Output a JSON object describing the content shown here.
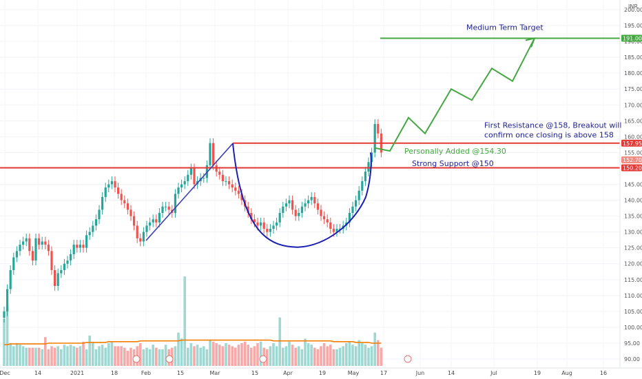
{
  "chart_data": {
    "type": "candlestick",
    "currency": "INR",
    "colors": {
      "up": "#26a69a",
      "down": "#ef5350",
      "target": "#43a83f",
      "resistance": "#e53935",
      "pattern": "#1a1fb0",
      "ma": "#f57c00"
    },
    "y_ticks": [
      "200.00",
      "195.00",
      "190.00",
      "185.00",
      "180.00",
      "175.00",
      "170.00",
      "165.00",
      "160.00",
      "155.00",
      "150.00",
      "145.00",
      "140.00",
      "135.00",
      "130.00",
      "125.00",
      "120.00",
      "115.00",
      "110.00",
      "105.00",
      "100.00",
      "95.00",
      "90.00"
    ],
    "ylim": [
      89,
      201
    ],
    "x_ticks": [
      "Dec",
      "14",
      "2021",
      "18",
      "Feb",
      "15",
      "Mar",
      "15",
      "Apr",
      "19",
      "May",
      "17",
      "Jun",
      "14",
      "Jul",
      "19",
      "Aug",
      "16"
    ],
    "price_tags": [
      {
        "label": "191.00",
        "value": 191.0,
        "color": "#43a83f"
      },
      {
        "label": "157.95",
        "value": 157.95,
        "color": "#e53935"
      },
      {
        "label": "152.70",
        "value": 152.7,
        "color": "#f28b82"
      },
      {
        "label": "150.20",
        "value": 150.2,
        "color": "#e53935"
      }
    ],
    "levels": [
      {
        "name": "Medium Term Target",
        "value": 191.0
      },
      {
        "name": "First Resistance",
        "value": 157.95
      },
      {
        "name": "Strong Support",
        "value": 150.2
      }
    ],
    "annotations": {
      "target": "Medium Term Target",
      "resistance_line1": "First Resistance @158, Breakout will",
      "resistance_line2": "confirm once closing is above 158",
      "added": "Personally Added @154.30",
      "support": "Strong Support @150"
    },
    "close": [
      105,
      112,
      118,
      122,
      124,
      126,
      127,
      128,
      124,
      121,
      128,
      126,
      127,
      126,
      124,
      118,
      113,
      117,
      118,
      120,
      121,
      123,
      126,
      125,
      126,
      125,
      129,
      130,
      132,
      134,
      137,
      141,
      144,
      145,
      146,
      144,
      142,
      140,
      139,
      137,
      135,
      132,
      128,
      127,
      130,
      132,
      133,
      134,
      133,
      136,
      138,
      138,
      137,
      136,
      142,
      144,
      145,
      146,
      148,
      150,
      145,
      146,
      147,
      147,
      151,
      158,
      151,
      149,
      148,
      146,
      146,
      145,
      144,
      143,
      142,
      140,
      138,
      136,
      134,
      133,
      132,
      133,
      131,
      130,
      131,
      132,
      133,
      136,
      138,
      139,
      140,
      137,
      135,
      136,
      138,
      139,
      140,
      141,
      139,
      137,
      135,
      134,
      133,
      131,
      130,
      131,
      131,
      132,
      133,
      136,
      138,
      140,
      143,
      146,
      149,
      152,
      155,
      164,
      161,
      155
    ],
    "volume": [
      62,
      80,
      30,
      26,
      30,
      28,
      26,
      24,
      24,
      24,
      24,
      24,
      22,
      38,
      22,
      26,
      24,
      26,
      22,
      28,
      26,
      28,
      26,
      24,
      26,
      32,
      22,
      40,
      32,
      22,
      26,
      28,
      24,
      30,
      32,
      26,
      26,
      26,
      24,
      20,
      24,
      22,
      26,
      30,
      22,
      24,
      22,
      28,
      24,
      22,
      22,
      28,
      22,
      24,
      26,
      44,
      36,
      118,
      24,
      30,
      26,
      28,
      24,
      26,
      22,
      34,
      32,
      30,
      28,
      26,
      30,
      28,
      26,
      24,
      28,
      30,
      32,
      28,
      24,
      26,
      30,
      32,
      24,
      22,
      26,
      30,
      26,
      64,
      24,
      26,
      32,
      28,
      24,
      26,
      22,
      36,
      30,
      28,
      24,
      22,
      26,
      30,
      26,
      28,
      22,
      22,
      24,
      26,
      30,
      32,
      28,
      26,
      34,
      30,
      28,
      24,
      26,
      44,
      34,
      24
    ],
    "ma": [
      28,
      28,
      29,
      29,
      29,
      29,
      29,
      29,
      29,
      29,
      29,
      29,
      29,
      29,
      30,
      30,
      30,
      30,
      30,
      30,
      30,
      30,
      30,
      30,
      30,
      30,
      31,
      31,
      31,
      31,
      31,
      31,
      31,
      32,
      32,
      32,
      32,
      32,
      32,
      32,
      32,
      32,
      32,
      33,
      33,
      33,
      33,
      33,
      33,
      33,
      33,
      33,
      33,
      33,
      33,
      33,
      34,
      34,
      34,
      34,
      34,
      34,
      34,
      34,
      34,
      34,
      34,
      34,
      34,
      34,
      34,
      34,
      34,
      34,
      34,
      34,
      34,
      34,
      34,
      34,
      34,
      34,
      34,
      34,
      34,
      33,
      33,
      33,
      33,
      33,
      33,
      33,
      33,
      33,
      33,
      33,
      33,
      33,
      33,
      33,
      33,
      33,
      33,
      33,
      32,
      32,
      32,
      32,
      32,
      32,
      32,
      31,
      31,
      31,
      31,
      31,
      30,
      30,
      30,
      30
    ]
  }
}
